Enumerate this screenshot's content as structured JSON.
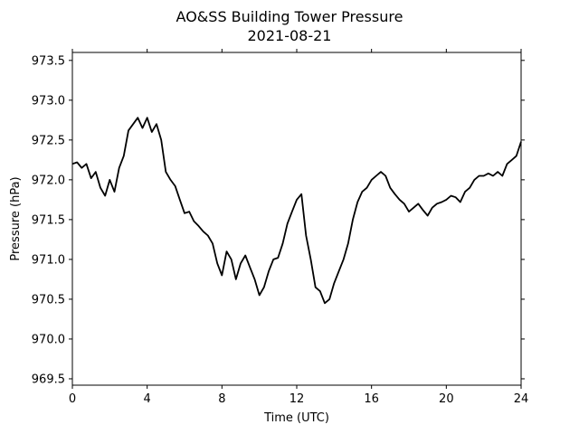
{
  "chart_data": {
    "type": "line",
    "title": "AO&SS Building Tower Pressure",
    "subtitle": "2021-08-21",
    "xlabel": "Time (UTC)",
    "ylabel": "Pressure (hPa)",
    "xlim": [
      0,
      24
    ],
    "ylim": [
      969.42,
      973.6
    ],
    "xticks": [
      0,
      4,
      8,
      12,
      16,
      20,
      24
    ],
    "yticks": [
      969.5,
      970.0,
      970.5,
      971.0,
      971.5,
      972.0,
      972.5,
      973.0,
      973.5
    ],
    "ytick_labels": [
      "969.5",
      "970.0",
      "970.5",
      "971.0",
      "971.5",
      "972.0",
      "972.5",
      "973.0",
      "973.5"
    ],
    "grid": false,
    "series": [
      {
        "color": "#000000",
        "x": [
          0,
          0.25,
          0.5,
          0.75,
          1.0,
          1.25,
          1.5,
          1.75,
          2.0,
          2.25,
          2.5,
          2.75,
          3.0,
          3.25,
          3.5,
          3.75,
          4.0,
          4.25,
          4.5,
          4.75,
          5.0,
          5.25,
          5.5,
          5.75,
          6.0,
          6.25,
          6.5,
          6.75,
          7.0,
          7.25,
          7.5,
          7.75,
          8.0,
          8.25,
          8.5,
          8.75,
          9.0,
          9.25,
          9.5,
          9.75,
          10.0,
          10.25,
          10.5,
          10.75,
          11.0,
          11.25,
          11.5,
          11.75,
          12.0,
          12.25,
          12.5,
          12.75,
          13.0,
          13.25,
          13.5,
          13.75,
          14.0,
          14.25,
          14.5,
          14.75,
          15.0,
          15.25,
          15.5,
          15.75,
          16.0,
          16.25,
          16.5,
          16.75,
          17.0,
          17.25,
          17.5,
          17.75,
          18.0,
          18.25,
          18.5,
          18.75,
          19.0,
          19.25,
          19.5,
          19.75,
          20.0,
          20.25,
          20.5,
          20.75,
          21.0,
          21.25,
          21.5,
          21.75,
          22.0,
          22.25,
          22.5,
          22.75,
          23.0,
          23.25,
          23.5,
          23.75,
          24.0
        ],
        "y": [
          972.2,
          972.22,
          972.15,
          972.2,
          972.02,
          972.1,
          971.9,
          971.8,
          972.0,
          971.85,
          972.15,
          972.3,
          972.62,
          972.7,
          972.78,
          972.65,
          972.78,
          972.6,
          972.7,
          972.5,
          972.1,
          972.0,
          971.92,
          971.75,
          971.58,
          971.6,
          971.48,
          971.42,
          971.35,
          971.3,
          971.2,
          970.95,
          970.8,
          971.1,
          971.0,
          970.75,
          970.95,
          971.05,
          970.9,
          970.75,
          970.55,
          970.65,
          970.85,
          971.0,
          971.02,
          971.2,
          971.45,
          971.6,
          971.75,
          971.82,
          971.3,
          971.0,
          970.65,
          970.6,
          970.45,
          970.5,
          970.7,
          970.85,
          971.0,
          971.2,
          971.5,
          971.72,
          971.85,
          971.9,
          972.0,
          972.05,
          972.1,
          972.05,
          971.9,
          971.82,
          971.75,
          971.7,
          971.6,
          971.65,
          971.7,
          971.62,
          971.55,
          971.65,
          971.7,
          971.72,
          971.75,
          971.8,
          971.78,
          971.72,
          971.85,
          971.9,
          972.0,
          972.05,
          972.05,
          972.08,
          972.05,
          972.1,
          972.05,
          972.2,
          972.25,
          972.3,
          972.48
        ]
      }
    ]
  }
}
